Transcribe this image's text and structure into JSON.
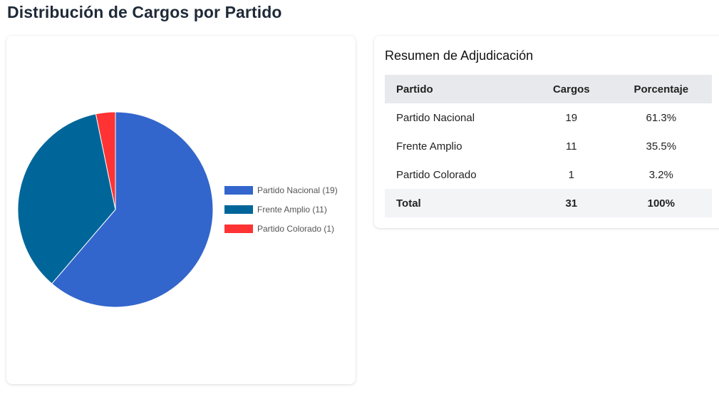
{
  "page": {
    "title": "Distribución de Cargos por Partido"
  },
  "chart_data": {
    "type": "pie",
    "categories": [
      "Partido Nacional",
      "Frente Amplio",
      "Partido Colorado"
    ],
    "values": [
      19,
      11,
      1
    ],
    "legend_labels": [
      "Partido Nacional (19)",
      "Frente Amplio (11)",
      "Partido Colorado (1)"
    ],
    "colors": [
      "#3366cc",
      "#006699",
      "#ff3333"
    ],
    "legend_position": "right"
  },
  "summary": {
    "title": "Resumen de Adjudicación",
    "headers": [
      "Partido",
      "Cargos",
      "Porcentaje"
    ],
    "rows": [
      {
        "party": "Partido Nacional",
        "cargos": "19",
        "pct": "61.3%"
      },
      {
        "party": "Frente Amplio",
        "cargos": "11",
        "pct": "35.5%"
      },
      {
        "party": "Partido Colorado",
        "cargos": "1",
        "pct": "3.2%"
      }
    ],
    "total": {
      "label": "Total",
      "cargos": "31",
      "pct": "100%"
    }
  }
}
